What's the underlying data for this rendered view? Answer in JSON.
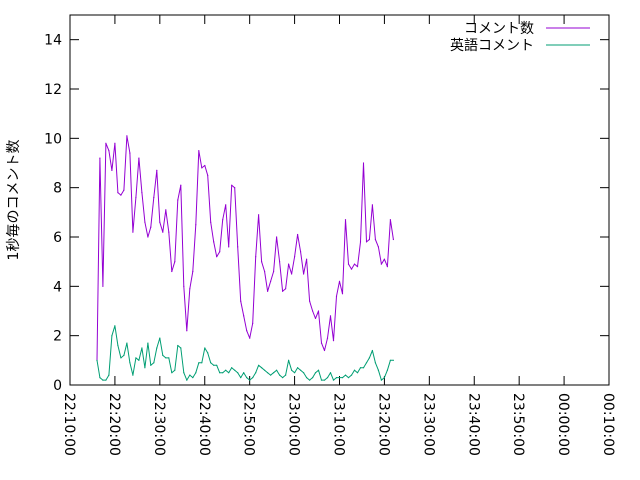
{
  "chart_data": {
    "type": "line",
    "ylabel": "1秒毎のコメント数",
    "ylim": [
      0,
      15
    ],
    "y_ticks": [
      "0",
      "2",
      "4",
      "6",
      "8",
      "10",
      "12",
      "14"
    ],
    "x_ticks": [
      "22:10:00",
      "22:20:00",
      "22:30:00",
      "22:40:00",
      "22:50:00",
      "23:00:00",
      "23:10:00",
      "23:20:00",
      "23:30:00",
      "23:40:00",
      "23:50:00",
      "00:00:00",
      "00:10:00"
    ],
    "xlim": [
      "22:10:00",
      "00:10:00"
    ],
    "legend_position": "top-right",
    "grid": false,
    "series": [
      {
        "name": "コメント数",
        "color": "#9400d3",
        "points": [
          [
            "22:16:00",
            1.0
          ],
          [
            "22:16:40",
            9.2
          ],
          [
            "22:17:20",
            4.0
          ],
          [
            "22:18:00",
            9.8
          ],
          [
            "22:18:40",
            9.5
          ],
          [
            "22:19:20",
            8.7
          ],
          [
            "22:20:00",
            9.8
          ],
          [
            "22:20:40",
            7.8
          ],
          [
            "22:21:20",
            7.7
          ],
          [
            "22:22:00",
            7.9
          ],
          [
            "22:22:40",
            10.1
          ],
          [
            "22:23:20",
            9.4
          ],
          [
            "22:24:00",
            6.2
          ],
          [
            "22:24:40",
            7.6
          ],
          [
            "22:25:20",
            9.2
          ],
          [
            "22:26:00",
            7.8
          ],
          [
            "22:26:40",
            6.6
          ],
          [
            "22:27:20",
            6.0
          ],
          [
            "22:28:00",
            6.4
          ],
          [
            "22:28:40",
            7.6
          ],
          [
            "22:29:20",
            8.7
          ],
          [
            "22:30:00",
            6.6
          ],
          [
            "22:30:40",
            6.2
          ],
          [
            "22:31:20",
            7.1
          ],
          [
            "22:32:00",
            6.2
          ],
          [
            "22:32:40",
            4.6
          ],
          [
            "22:33:20",
            5.0
          ],
          [
            "22:34:00",
            7.5
          ],
          [
            "22:34:40",
            8.1
          ],
          [
            "22:35:20",
            4.0
          ],
          [
            "22:36:00",
            2.2
          ],
          [
            "22:36:40",
            3.9
          ],
          [
            "22:37:20",
            4.6
          ],
          [
            "22:38:00",
            6.5
          ],
          [
            "22:38:40",
            9.5
          ],
          [
            "22:39:20",
            8.8
          ],
          [
            "22:40:00",
            8.9
          ],
          [
            "22:40:40",
            8.5
          ],
          [
            "22:41:20",
            6.6
          ],
          [
            "22:42:00",
            5.8
          ],
          [
            "22:42:40",
            5.2
          ],
          [
            "22:43:20",
            5.4
          ],
          [
            "22:44:00",
            6.7
          ],
          [
            "22:44:40",
            7.3
          ],
          [
            "22:45:20",
            5.6
          ],
          [
            "22:46:00",
            8.1
          ],
          [
            "22:46:40",
            8.0
          ],
          [
            "22:47:20",
            5.6
          ],
          [
            "22:48:00",
            3.4
          ],
          [
            "22:48:40",
            2.8
          ],
          [
            "22:49:20",
            2.2
          ],
          [
            "22:50:00",
            1.9
          ],
          [
            "22:50:40",
            2.5
          ],
          [
            "22:51:20",
            5.2
          ],
          [
            "22:52:00",
            6.9
          ],
          [
            "22:52:40",
            5.0
          ],
          [
            "22:53:20",
            4.6
          ],
          [
            "22:54:00",
            3.8
          ],
          [
            "22:54:40",
            4.2
          ],
          [
            "22:55:20",
            4.6
          ],
          [
            "22:56:00",
            6.0
          ],
          [
            "22:56:40",
            5.0
          ],
          [
            "22:57:20",
            3.8
          ],
          [
            "22:58:00",
            3.9
          ],
          [
            "22:58:40",
            4.9
          ],
          [
            "22:59:20",
            4.5
          ],
          [
            "23:00:00",
            5.2
          ],
          [
            "23:00:40",
            6.1
          ],
          [
            "23:01:20",
            5.4
          ],
          [
            "23:02:00",
            4.5
          ],
          [
            "23:02:40",
            5.1
          ],
          [
            "23:03:20",
            3.4
          ],
          [
            "23:04:00",
            3.0
          ],
          [
            "23:04:40",
            2.7
          ],
          [
            "23:05:20",
            3.0
          ],
          [
            "23:06:00",
            1.7
          ],
          [
            "23:06:40",
            1.4
          ],
          [
            "23:07:20",
            1.9
          ],
          [
            "23:08:00",
            2.8
          ],
          [
            "23:08:40",
            1.8
          ],
          [
            "23:09:20",
            3.6
          ],
          [
            "23:10:00",
            4.2
          ],
          [
            "23:10:40",
            3.7
          ],
          [
            "23:11:20",
            6.7
          ],
          [
            "23:12:00",
            4.9
          ],
          [
            "23:12:40",
            4.7
          ],
          [
            "23:13:20",
            4.9
          ],
          [
            "23:14:00",
            4.8
          ],
          [
            "23:14:40",
            5.8
          ],
          [
            "23:15:20",
            9.0
          ],
          [
            "23:16:00",
            5.8
          ],
          [
            "23:16:40",
            5.9
          ],
          [
            "23:17:20",
            7.3
          ],
          [
            "23:18:00",
            5.9
          ],
          [
            "23:18:40",
            5.6
          ],
          [
            "23:19:20",
            4.9
          ],
          [
            "23:20:00",
            5.1
          ],
          [
            "23:20:40",
            4.8
          ],
          [
            "23:21:20",
            6.7
          ],
          [
            "23:22:00",
            5.9
          ]
        ]
      },
      {
        "name": "英語コメント",
        "color": "#009e73",
        "points": [
          [
            "22:16:00",
            1.0
          ],
          [
            "22:16:40",
            0.3
          ],
          [
            "22:17:20",
            0.2
          ],
          [
            "22:18:00",
            0.2
          ],
          [
            "22:18:40",
            0.4
          ],
          [
            "22:19:20",
            2.0
          ],
          [
            "22:20:00",
            2.4
          ],
          [
            "22:20:40",
            1.6
          ],
          [
            "22:21:20",
            1.1
          ],
          [
            "22:22:00",
            1.2
          ],
          [
            "22:22:40",
            1.7
          ],
          [
            "22:23:20",
            0.9
          ],
          [
            "22:24:00",
            0.4
          ],
          [
            "22:24:40",
            1.1
          ],
          [
            "22:25:20",
            1.0
          ],
          [
            "22:26:00",
            1.5
          ],
          [
            "22:26:40",
            0.7
          ],
          [
            "22:27:20",
            1.7
          ],
          [
            "22:28:00",
            0.8
          ],
          [
            "22:28:40",
            0.9
          ],
          [
            "22:29:20",
            1.5
          ],
          [
            "22:30:00",
            1.9
          ],
          [
            "22:30:40",
            1.2
          ],
          [
            "22:31:20",
            1.1
          ],
          [
            "22:32:00",
            1.1
          ],
          [
            "22:32:40",
            0.5
          ],
          [
            "22:33:20",
            0.6
          ],
          [
            "22:34:00",
            1.6
          ],
          [
            "22:34:40",
            1.5
          ],
          [
            "22:35:20",
            0.5
          ],
          [
            "22:36:00",
            0.2
          ],
          [
            "22:36:40",
            0.4
          ],
          [
            "22:37:20",
            0.3
          ],
          [
            "22:38:00",
            0.5
          ],
          [
            "22:38:40",
            0.9
          ],
          [
            "22:39:20",
            0.9
          ],
          [
            "22:40:00",
            1.5
          ],
          [
            "22:40:40",
            1.3
          ],
          [
            "22:41:20",
            0.9
          ],
          [
            "22:42:00",
            0.8
          ],
          [
            "22:42:40",
            0.8
          ],
          [
            "22:43:20",
            0.5
          ],
          [
            "22:44:00",
            0.5
          ],
          [
            "22:44:40",
            0.6
          ],
          [
            "22:45:20",
            0.5
          ],
          [
            "22:46:00",
            0.7
          ],
          [
            "22:46:40",
            0.6
          ],
          [
            "22:47:20",
            0.5
          ],
          [
            "22:48:00",
            0.3
          ],
          [
            "22:48:40",
            0.5
          ],
          [
            "22:49:20",
            0.3
          ],
          [
            "22:50:00",
            0.2
          ],
          [
            "22:50:40",
            0.3
          ],
          [
            "22:51:20",
            0.5
          ],
          [
            "22:52:00",
            0.8
          ],
          [
            "22:52:40",
            0.7
          ],
          [
            "22:53:20",
            0.6
          ],
          [
            "22:54:00",
            0.5
          ],
          [
            "22:54:40",
            0.4
          ],
          [
            "22:55:20",
            0.5
          ],
          [
            "22:56:00",
            0.6
          ],
          [
            "22:56:40",
            0.4
          ],
          [
            "22:57:20",
            0.3
          ],
          [
            "22:58:00",
            0.4
          ],
          [
            "22:58:40",
            1.0
          ],
          [
            "22:59:20",
            0.6
          ],
          [
            "23:00:00",
            0.5
          ],
          [
            "23:00:40",
            0.7
          ],
          [
            "23:01:20",
            0.6
          ],
          [
            "23:02:00",
            0.5
          ],
          [
            "23:02:40",
            0.3
          ],
          [
            "23:03:20",
            0.2
          ],
          [
            "23:04:00",
            0.3
          ],
          [
            "23:04:40",
            0.5
          ],
          [
            "23:05:20",
            0.6
          ],
          [
            "23:06:00",
            0.2
          ],
          [
            "23:06:40",
            0.2
          ],
          [
            "23:07:20",
            0.3
          ],
          [
            "23:08:00",
            0.5
          ],
          [
            "23:08:40",
            0.2
          ],
          [
            "23:09:20",
            0.3
          ],
          [
            "23:10:00",
            0.3
          ],
          [
            "23:10:40",
            0.3
          ],
          [
            "23:11:20",
            0.4
          ],
          [
            "23:12:00",
            0.3
          ],
          [
            "23:12:40",
            0.4
          ],
          [
            "23:13:20",
            0.6
          ],
          [
            "23:14:00",
            0.5
          ],
          [
            "23:14:40",
            0.7
          ],
          [
            "23:15:20",
            0.7
          ],
          [
            "23:16:00",
            0.9
          ],
          [
            "23:16:40",
            1.1
          ],
          [
            "23:17:20",
            1.4
          ],
          [
            "23:18:00",
            0.9
          ],
          [
            "23:18:40",
            0.6
          ],
          [
            "23:19:20",
            0.2
          ],
          [
            "23:20:00",
            0.3
          ],
          [
            "23:20:40",
            0.6
          ],
          [
            "23:21:20",
            1.0
          ],
          [
            "23:22:00",
            1.0
          ]
        ]
      }
    ]
  }
}
